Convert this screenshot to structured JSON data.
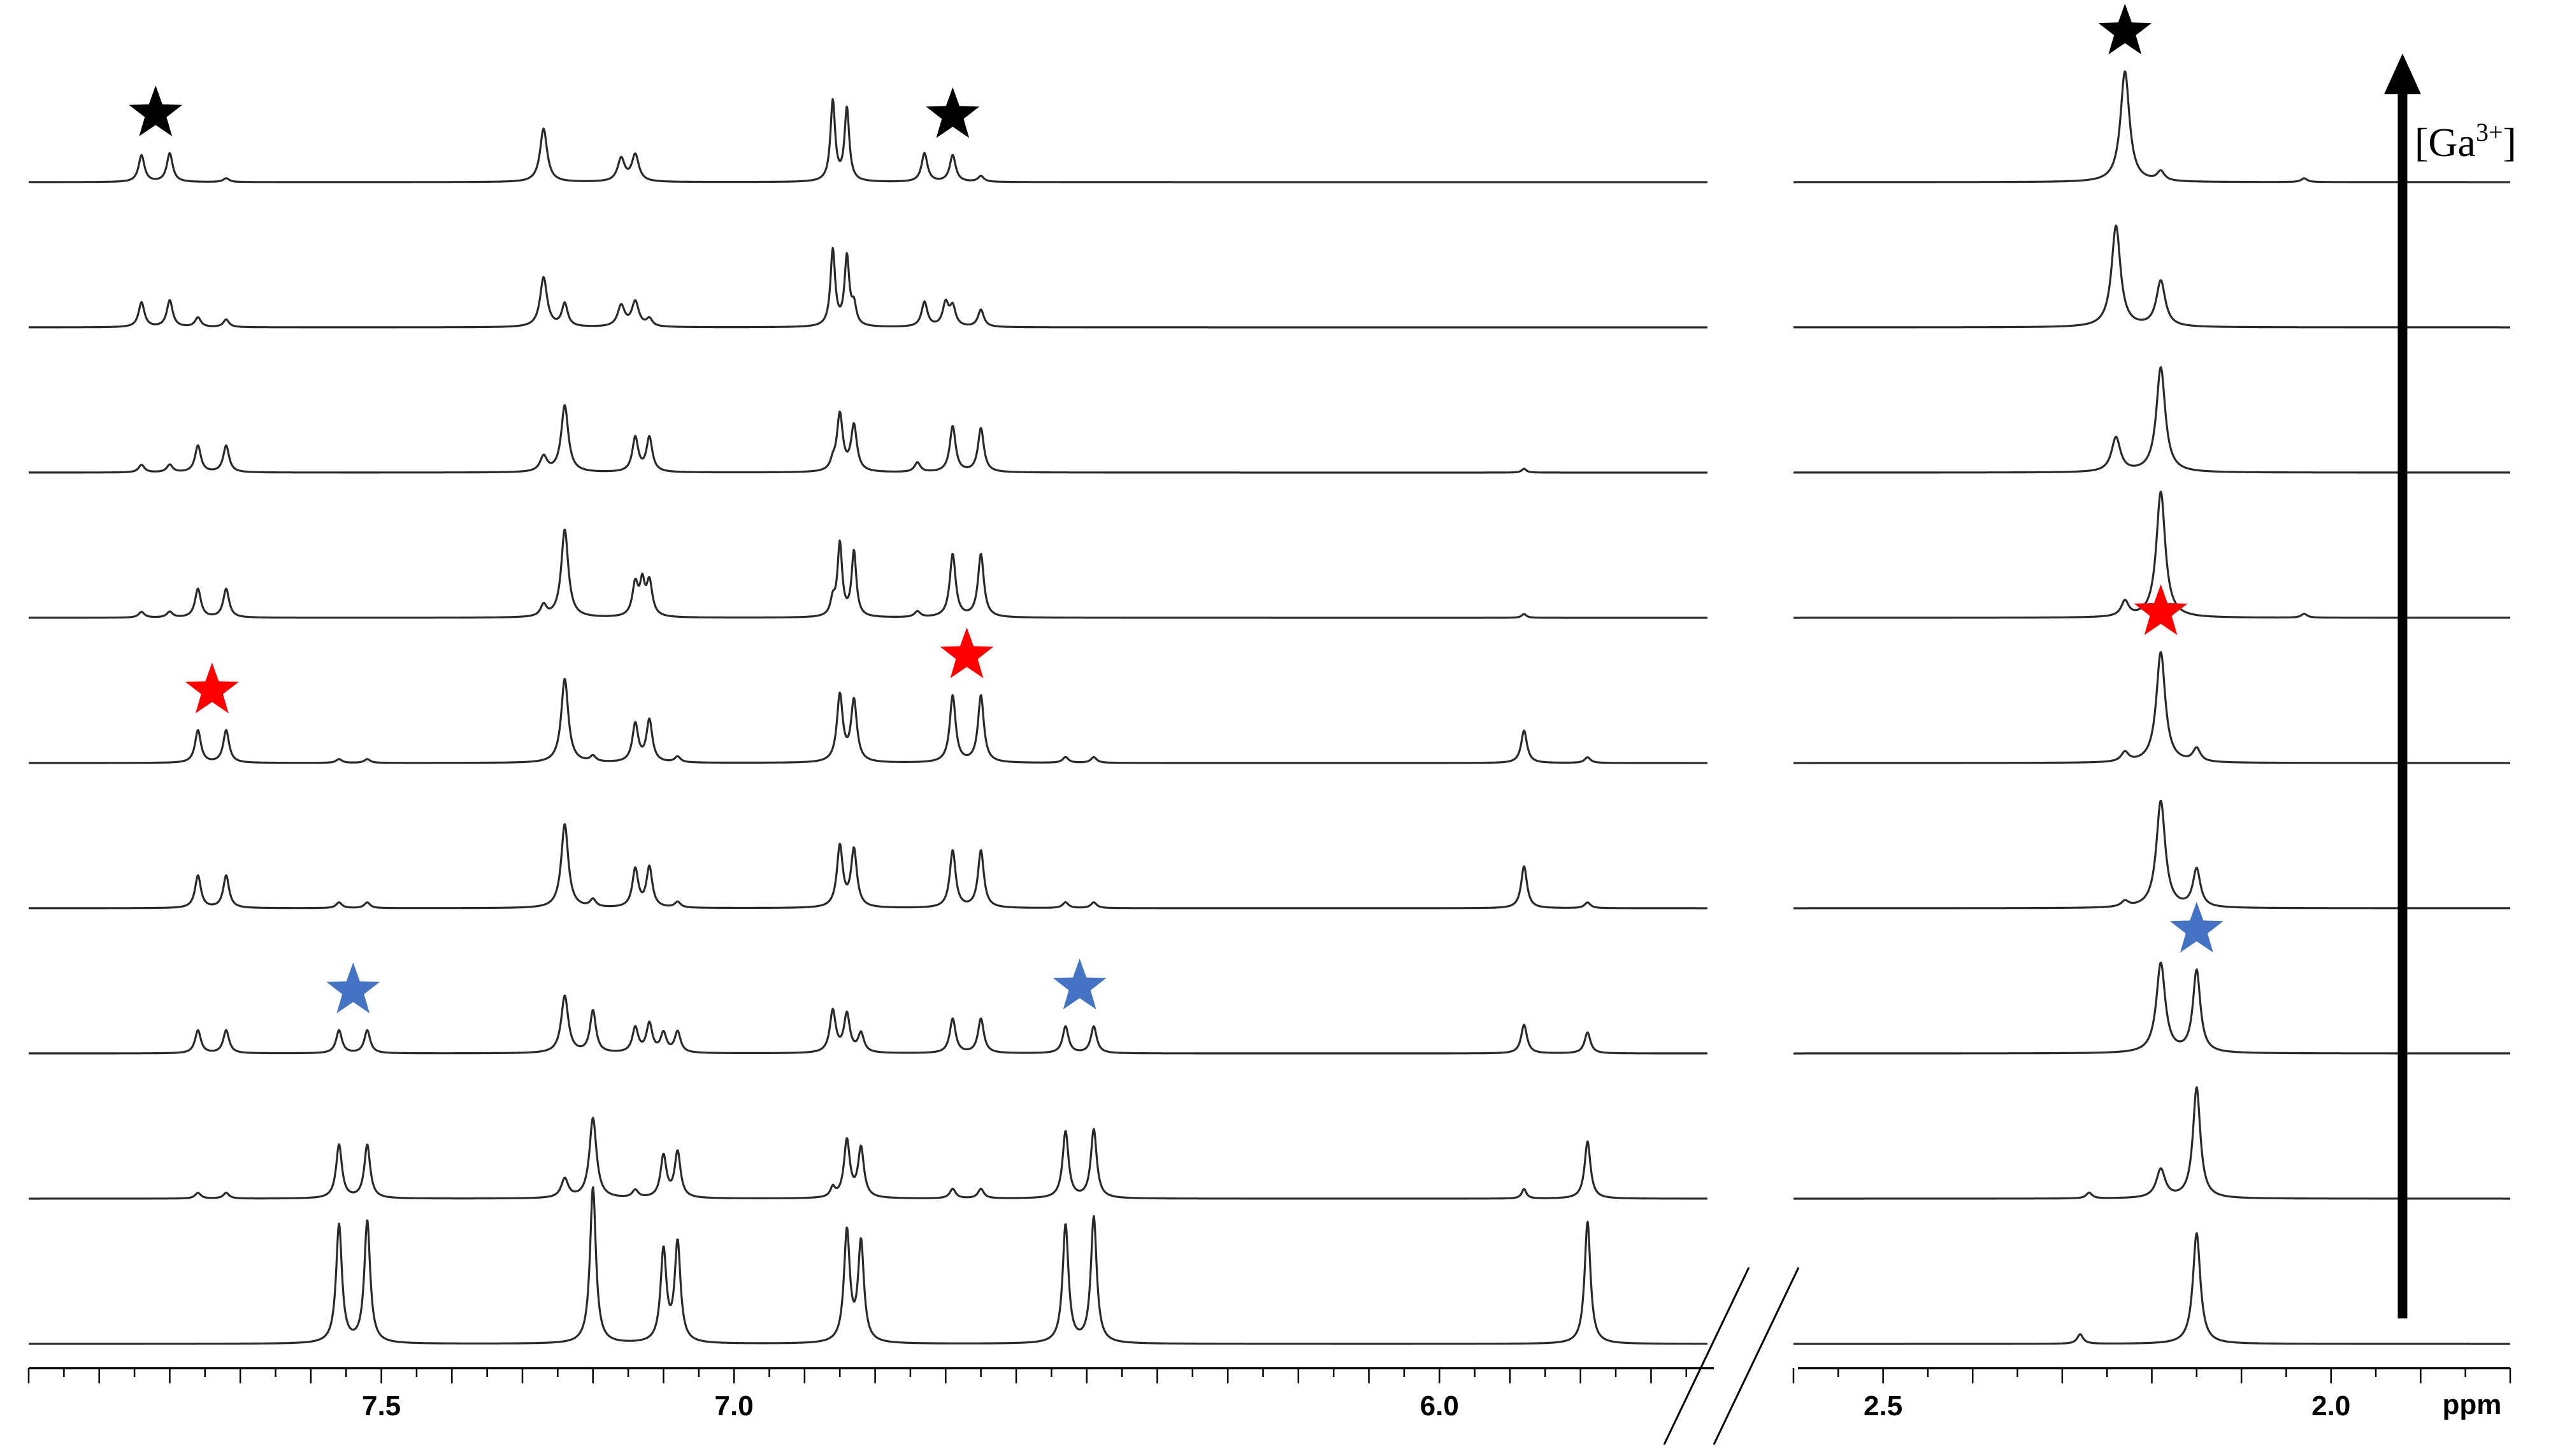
{
  "chart_data": {
    "type": "line",
    "title": "",
    "xlabel": "ppm",
    "ylabel": "",
    "x_reversed": true,
    "grid": false,
    "legend": "none",
    "axis_break": true,
    "concentration_label_prefix": "[Ga",
    "concentration_label_sup": "3+",
    "concentration_label_suffix": "]",
    "regions": [
      {
        "name": "aromatic",
        "xlim": [
          8.0,
          5.62
        ],
        "ticks": [
          7.5,
          7.0,
          6.0
        ],
        "tick_labels": [
          "7.5",
          "7.0",
          "6.0"
        ]
      },
      {
        "name": "aliphatic",
        "xlim": [
          2.6,
          1.8
        ],
        "ticks": [
          2.5,
          2.0
        ],
        "tick_labels": [
          "2.5",
          "2.0"
        ]
      }
    ],
    "series": [
      {
        "peaks": [
          {
            "x": 7.56,
            "h": 0.62,
            "w": 0.005
          },
          {
            "x": 7.52,
            "h": 0.64,
            "w": 0.005
          },
          {
            "x": 7.2,
            "h": 0.82,
            "w": 0.005
          },
          {
            "x": 7.1,
            "h": 0.48,
            "w": 0.005
          },
          {
            "x": 7.08,
            "h": 0.52,
            "w": 0.005
          },
          {
            "x": 6.84,
            "h": 0.58,
            "w": 0.005
          },
          {
            "x": 6.82,
            "h": 0.52,
            "w": 0.005
          },
          {
            "x": 6.53,
            "h": 0.62,
            "w": 0.005
          },
          {
            "x": 6.49,
            "h": 0.66,
            "w": 0.005
          },
          {
            "x": 5.79,
            "h": 0.64,
            "w": 0.005
          },
          {
            "x": 2.28,
            "h": 0.05,
            "w": 0.004
          },
          {
            "x": 2.15,
            "h": 0.58,
            "w": 0.005
          }
        ]
      },
      {
        "peaks": [
          {
            "x": 7.76,
            "h": 0.03,
            "w": 0.005
          },
          {
            "x": 7.72,
            "h": 0.03,
            "w": 0.005
          },
          {
            "x": 7.56,
            "h": 0.28,
            "w": 0.005
          },
          {
            "x": 7.52,
            "h": 0.28,
            "w": 0.005
          },
          {
            "x": 7.24,
            "h": 0.1,
            "w": 0.006
          },
          {
            "x": 7.2,
            "h": 0.42,
            "w": 0.006
          },
          {
            "x": 7.14,
            "h": 0.04,
            "w": 0.005
          },
          {
            "x": 7.1,
            "h": 0.22,
            "w": 0.005
          },
          {
            "x": 7.08,
            "h": 0.24,
            "w": 0.005
          },
          {
            "x": 6.86,
            "h": 0.05,
            "w": 0.004
          },
          {
            "x": 6.84,
            "h": 0.3,
            "w": 0.005
          },
          {
            "x": 6.82,
            "h": 0.26,
            "w": 0.005
          },
          {
            "x": 6.69,
            "h": 0.05,
            "w": 0.005
          },
          {
            "x": 6.65,
            "h": 0.05,
            "w": 0.005
          },
          {
            "x": 6.53,
            "h": 0.35,
            "w": 0.005
          },
          {
            "x": 6.49,
            "h": 0.36,
            "w": 0.005
          },
          {
            "x": 5.88,
            "h": 0.05,
            "w": 0.004
          },
          {
            "x": 5.79,
            "h": 0.3,
            "w": 0.005
          },
          {
            "x": 2.27,
            "h": 0.03,
            "w": 0.004
          },
          {
            "x": 2.19,
            "h": 0.15,
            "w": 0.006
          },
          {
            "x": 2.15,
            "h": 0.58,
            "w": 0.005
          }
        ]
      },
      {
        "peaks": [
          {
            "x": 7.76,
            "h": 0.12,
            "w": 0.005
          },
          {
            "x": 7.72,
            "h": 0.12,
            "w": 0.005
          },
          {
            "x": 7.56,
            "h": 0.12,
            "w": 0.005
          },
          {
            "x": 7.52,
            "h": 0.12,
            "w": 0.005
          },
          {
            "x": 7.24,
            "h": 0.3,
            "w": 0.006
          },
          {
            "x": 7.2,
            "h": 0.22,
            "w": 0.005
          },
          {
            "x": 7.14,
            "h": 0.13,
            "w": 0.005
          },
          {
            "x": 7.12,
            "h": 0.15,
            "w": 0.005
          },
          {
            "x": 7.1,
            "h": 0.1,
            "w": 0.005
          },
          {
            "x": 7.08,
            "h": 0.11,
            "w": 0.005
          },
          {
            "x": 6.86,
            "h": 0.22,
            "w": 0.005
          },
          {
            "x": 6.84,
            "h": 0.2,
            "w": 0.005
          },
          {
            "x": 6.82,
            "h": 0.1,
            "w": 0.005
          },
          {
            "x": 6.69,
            "h": 0.18,
            "w": 0.005
          },
          {
            "x": 6.65,
            "h": 0.18,
            "w": 0.005
          },
          {
            "x": 6.53,
            "h": 0.14,
            "w": 0.005
          },
          {
            "x": 6.49,
            "h": 0.14,
            "w": 0.005
          },
          {
            "x": 5.88,
            "h": 0.15,
            "w": 0.005
          },
          {
            "x": 5.79,
            "h": 0.11,
            "w": 0.005
          },
          {
            "x": 2.19,
            "h": 0.47,
            "w": 0.006
          },
          {
            "x": 2.15,
            "h": 0.43,
            "w": 0.005
          }
        ]
      },
      {
        "peaks": [
          {
            "x": 7.76,
            "h": 0.17,
            "w": 0.005
          },
          {
            "x": 7.72,
            "h": 0.17,
            "w": 0.005
          },
          {
            "x": 7.56,
            "h": 0.03,
            "w": 0.005
          },
          {
            "x": 7.52,
            "h": 0.03,
            "w": 0.005
          },
          {
            "x": 7.24,
            "h": 0.44,
            "w": 0.006
          },
          {
            "x": 7.2,
            "h": 0.04,
            "w": 0.005
          },
          {
            "x": 7.14,
            "h": 0.2,
            "w": 0.005
          },
          {
            "x": 7.12,
            "h": 0.21,
            "w": 0.005
          },
          {
            "x": 7.08,
            "h": 0.03,
            "w": 0.005
          },
          {
            "x": 6.85,
            "h": 0.32,
            "w": 0.005
          },
          {
            "x": 6.83,
            "h": 0.3,
            "w": 0.005
          },
          {
            "x": 6.69,
            "h": 0.3,
            "w": 0.005
          },
          {
            "x": 6.65,
            "h": 0.3,
            "w": 0.005
          },
          {
            "x": 6.53,
            "h": 0.03,
            "w": 0.005
          },
          {
            "x": 6.49,
            "h": 0.03,
            "w": 0.005
          },
          {
            "x": 5.88,
            "h": 0.22,
            "w": 0.005
          },
          {
            "x": 5.79,
            "h": 0.03,
            "w": 0.005
          },
          {
            "x": 2.23,
            "h": 0.03,
            "w": 0.005
          },
          {
            "x": 2.19,
            "h": 0.56,
            "w": 0.006
          },
          {
            "x": 2.15,
            "h": 0.2,
            "w": 0.005
          }
        ]
      },
      {
        "peaks": [
          {
            "x": 7.76,
            "h": 0.17,
            "w": 0.005
          },
          {
            "x": 7.72,
            "h": 0.17,
            "w": 0.005
          },
          {
            "x": 7.56,
            "h": 0.02,
            "w": 0.005
          },
          {
            "x": 7.52,
            "h": 0.02,
            "w": 0.005
          },
          {
            "x": 7.24,
            "h": 0.44,
            "w": 0.006
          },
          {
            "x": 7.2,
            "h": 0.03,
            "w": 0.005
          },
          {
            "x": 7.14,
            "h": 0.2,
            "w": 0.005
          },
          {
            "x": 7.12,
            "h": 0.22,
            "w": 0.005
          },
          {
            "x": 7.08,
            "h": 0.03,
            "w": 0.005
          },
          {
            "x": 6.85,
            "h": 0.35,
            "w": 0.005
          },
          {
            "x": 6.83,
            "h": 0.32,
            "w": 0.005
          },
          {
            "x": 6.69,
            "h": 0.35,
            "w": 0.005
          },
          {
            "x": 6.65,
            "h": 0.35,
            "w": 0.005
          },
          {
            "x": 6.53,
            "h": 0.03,
            "w": 0.005
          },
          {
            "x": 6.49,
            "h": 0.03,
            "w": 0.005
          },
          {
            "x": 5.88,
            "h": 0.17,
            "w": 0.005
          },
          {
            "x": 5.79,
            "h": 0.03,
            "w": 0.005
          },
          {
            "x": 2.23,
            "h": 0.05,
            "w": 0.005
          },
          {
            "x": 2.19,
            "h": 0.58,
            "w": 0.006
          },
          {
            "x": 2.15,
            "h": 0.07,
            "w": 0.005
          }
        ]
      },
      {
        "peaks": [
          {
            "x": 7.84,
            "h": 0.03,
            "w": 0.005
          },
          {
            "x": 7.8,
            "h": 0.03,
            "w": 0.005
          },
          {
            "x": 7.76,
            "h": 0.15,
            "w": 0.005
          },
          {
            "x": 7.72,
            "h": 0.15,
            "w": 0.005
          },
          {
            "x": 7.27,
            "h": 0.06,
            "w": 0.005
          },
          {
            "x": 7.24,
            "h": 0.46,
            "w": 0.006
          },
          {
            "x": 7.14,
            "h": 0.17,
            "w": 0.005
          },
          {
            "x": 7.13,
            "h": 0.16,
            "w": 0.004
          },
          {
            "x": 7.12,
            "h": 0.18,
            "w": 0.005
          },
          {
            "x": 6.86,
            "h": 0.08,
            "w": 0.004
          },
          {
            "x": 6.85,
            "h": 0.38,
            "w": 0.004
          },
          {
            "x": 6.83,
            "h": 0.34,
            "w": 0.004
          },
          {
            "x": 6.69,
            "h": 0.33,
            "w": 0.005
          },
          {
            "x": 6.65,
            "h": 0.33,
            "w": 0.005
          },
          {
            "x": 6.74,
            "h": 0.03,
            "w": 0.005
          },
          {
            "x": 5.88,
            "h": 0.02,
            "w": 0.004
          },
          {
            "x": 2.23,
            "h": 0.08,
            "w": 0.005
          },
          {
            "x": 2.19,
            "h": 0.66,
            "w": 0.006
          },
          {
            "x": 2.03,
            "h": 0.02,
            "w": 0.004
          }
        ]
      },
      {
        "peaks": [
          {
            "x": 7.84,
            "h": 0.04,
            "w": 0.005
          },
          {
            "x": 7.8,
            "h": 0.04,
            "w": 0.005
          },
          {
            "x": 7.76,
            "h": 0.14,
            "w": 0.005
          },
          {
            "x": 7.72,
            "h": 0.14,
            "w": 0.005
          },
          {
            "x": 7.27,
            "h": 0.08,
            "w": 0.006
          },
          {
            "x": 7.24,
            "h": 0.35,
            "w": 0.006
          },
          {
            "x": 7.14,
            "h": 0.18,
            "w": 0.005
          },
          {
            "x": 7.12,
            "h": 0.18,
            "w": 0.005
          },
          {
            "x": 6.86,
            "h": 0.04,
            "w": 0.004
          },
          {
            "x": 6.85,
            "h": 0.3,
            "w": 0.005
          },
          {
            "x": 6.83,
            "h": 0.24,
            "w": 0.005
          },
          {
            "x": 6.74,
            "h": 0.05,
            "w": 0.005
          },
          {
            "x": 6.69,
            "h": 0.24,
            "w": 0.005
          },
          {
            "x": 6.65,
            "h": 0.23,
            "w": 0.005
          },
          {
            "x": 5.88,
            "h": 0.02,
            "w": 0.004
          },
          {
            "x": 2.24,
            "h": 0.18,
            "w": 0.006
          },
          {
            "x": 2.19,
            "h": 0.55,
            "w": 0.006
          }
        ]
      },
      {
        "peaks": [
          {
            "x": 7.84,
            "h": 0.13,
            "w": 0.005
          },
          {
            "x": 7.8,
            "h": 0.14,
            "w": 0.005
          },
          {
            "x": 7.76,
            "h": 0.05,
            "w": 0.005
          },
          {
            "x": 7.72,
            "h": 0.04,
            "w": 0.005
          },
          {
            "x": 7.27,
            "h": 0.26,
            "w": 0.006
          },
          {
            "x": 7.24,
            "h": 0.12,
            "w": 0.005
          },
          {
            "x": 7.16,
            "h": 0.11,
            "w": 0.006
          },
          {
            "x": 7.14,
            "h": 0.13,
            "w": 0.006
          },
          {
            "x": 7.12,
            "h": 0.04,
            "w": 0.005
          },
          {
            "x": 6.86,
            "h": 0.4,
            "w": 0.004
          },
          {
            "x": 6.84,
            "h": 0.36,
            "w": 0.004
          },
          {
            "x": 6.83,
            "h": 0.1,
            "w": 0.004
          },
          {
            "x": 6.73,
            "h": 0.13,
            "w": 0.005
          },
          {
            "x": 6.7,
            "h": 0.12,
            "w": 0.005
          },
          {
            "x": 6.69,
            "h": 0.1,
            "w": 0.005
          },
          {
            "x": 6.65,
            "h": 0.09,
            "w": 0.005
          },
          {
            "x": 2.24,
            "h": 0.53,
            "w": 0.006
          },
          {
            "x": 2.19,
            "h": 0.24,
            "w": 0.006
          }
        ]
      },
      {
        "peaks": [
          {
            "x": 7.84,
            "h": 0.14,
            "w": 0.005
          },
          {
            "x": 7.8,
            "h": 0.15,
            "w": 0.005
          },
          {
            "x": 7.72,
            "h": 0.02,
            "w": 0.005
          },
          {
            "x": 7.27,
            "h": 0.28,
            "w": 0.006
          },
          {
            "x": 7.16,
            "h": 0.12,
            "w": 0.006
          },
          {
            "x": 7.14,
            "h": 0.14,
            "w": 0.006
          },
          {
            "x": 6.86,
            "h": 0.42,
            "w": 0.004
          },
          {
            "x": 6.84,
            "h": 0.38,
            "w": 0.004
          },
          {
            "x": 6.73,
            "h": 0.15,
            "w": 0.005
          },
          {
            "x": 6.69,
            "h": 0.14,
            "w": 0.005
          },
          {
            "x": 6.65,
            "h": 0.03,
            "w": 0.005
          },
          {
            "x": 2.23,
            "h": 0.58,
            "w": 0.006
          },
          {
            "x": 2.19,
            "h": 0.05,
            "w": 0.005
          },
          {
            "x": 2.03,
            "h": 0.02,
            "w": 0.004
          }
        ]
      }
    ],
    "markers": [
      {
        "color": "#000000",
        "trace": 8,
        "x": [
          7.82,
          6.69,
          2.23
        ]
      },
      {
        "color": "#ff0000",
        "trace": 4,
        "x": [
          7.74,
          6.67,
          2.19
        ]
      },
      {
        "color": "#4472c4",
        "trace": 2,
        "x": [
          7.54,
          6.51,
          2.15
        ]
      }
    ]
  }
}
